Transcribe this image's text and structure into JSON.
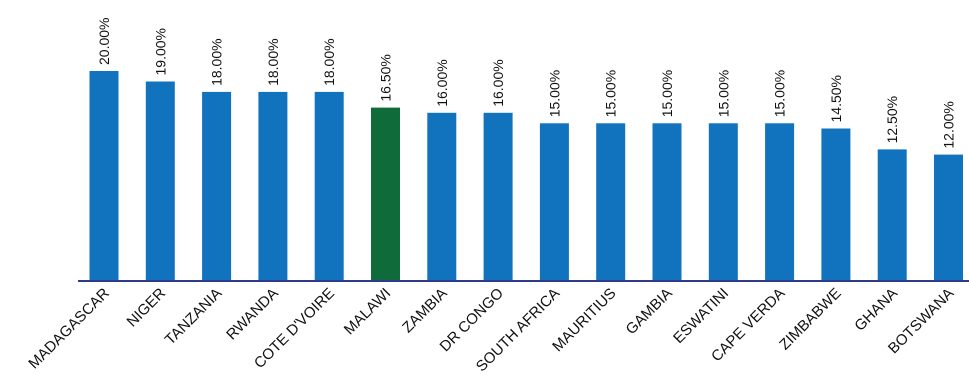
{
  "chart_data": {
    "type": "bar",
    "title": "",
    "xlabel": "",
    "ylabel": "",
    "ylim": [
      0,
      20
    ],
    "grid": false,
    "categories": [
      "MADAGASCAR",
      "NIGER",
      "TANZANIA",
      "RWANDA",
      "COTE D'VOIRE",
      "MALAWI",
      "ZAMBIA",
      "DR CONGO",
      "SOUTH AFRICA",
      "MAURITIUS",
      "GAMBIA",
      "ESWATINI",
      "CAPE VERDA",
      "ZIMBABWE",
      "GHANA",
      "BOTSWANA"
    ],
    "series": [
      {
        "values": [
          20.0,
          19.0,
          18.0,
          18.0,
          18.0,
          16.5,
          16.0,
          16.0,
          15.0,
          15.0,
          15.0,
          15.0,
          15.0,
          14.5,
          12.5,
          12.0
        ]
      }
    ],
    "data_labels": [
      "20.00%",
      "19.00%",
      "18.00%",
      "18.00%",
      "18.00%",
      "16.50%",
      "16.00%",
      "16.00%",
      "15.00%",
      "15.00%",
      "15.00%",
      "15.00%",
      "15.00%",
      "14.50%",
      "12.50%",
      "12.00%"
    ],
    "highlight_category": "MALAWI",
    "colors": {
      "bar": "#1173BE",
      "highlight": "#0F6B3A",
      "axis": "#2E3A8C"
    }
  }
}
